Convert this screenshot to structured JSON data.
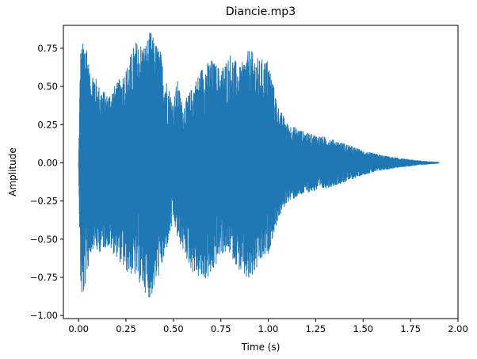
{
  "chart_data": {
    "type": "line",
    "title": "Diancie.mp3",
    "xlabel": "Time (s)",
    "ylabel": "Amplitude",
    "xlim": [
      -0.08,
      2.0
    ],
    "ylim": [
      -1.02,
      0.9
    ],
    "grid": false,
    "legend": "none",
    "x_ticks": [
      0.0,
      0.25,
      0.5,
      0.75,
      1.0,
      1.25,
      1.5,
      1.75,
      2.0
    ],
    "x_tick_labels": [
      "0.00",
      "0.25",
      "0.50",
      "0.75",
      "1.00",
      "1.25",
      "1.50",
      "1.75",
      "2.00"
    ],
    "y_ticks": [
      -1.0,
      -0.75,
      -0.5,
      -0.25,
      0.0,
      0.25,
      0.5,
      0.75
    ],
    "y_tick_labels": [
      "−1.00",
      "−0.75",
      "−0.50",
      "−0.25",
      "0.00",
      "0.25",
      "0.50",
      "0.75"
    ],
    "series_color": "#1f77b4",
    "series": [
      {
        "envelope": {
          "time": [
            0.0,
            0.01,
            0.02,
            0.04,
            0.06,
            0.08,
            0.1,
            0.15,
            0.2,
            0.25,
            0.3,
            0.35,
            0.38,
            0.4,
            0.43,
            0.45,
            0.5,
            0.52,
            0.55,
            0.6,
            0.65,
            0.7,
            0.75,
            0.8,
            0.85,
            0.9,
            0.95,
            1.0,
            1.05,
            1.1,
            1.2,
            1.3,
            1.4,
            1.5,
            1.6,
            1.7,
            1.8,
            1.9
          ],
          "upper": [
            0.0,
            0.75,
            0.78,
            0.84,
            0.58,
            0.62,
            0.52,
            0.45,
            0.52,
            0.62,
            0.8,
            0.78,
            0.87,
            0.8,
            0.75,
            0.6,
            0.4,
            0.55,
            0.38,
            0.5,
            0.63,
            0.68,
            0.62,
            0.72,
            0.63,
            0.75,
            0.68,
            0.68,
            0.38,
            0.26,
            0.2,
            0.17,
            0.13,
            0.08,
            0.05,
            0.03,
            0.015,
            0.005
          ],
          "lower": [
            0.0,
            -0.8,
            -0.93,
            -0.78,
            -0.62,
            -0.55,
            -0.6,
            -0.55,
            -0.62,
            -0.72,
            -0.75,
            -0.85,
            -0.9,
            -0.82,
            -0.72,
            -0.65,
            -0.38,
            -0.5,
            -0.58,
            -0.72,
            -0.78,
            -0.75,
            -0.6,
            -0.6,
            -0.72,
            -0.8,
            -0.68,
            -0.6,
            -0.38,
            -0.26,
            -0.2,
            -0.17,
            -0.13,
            -0.08,
            -0.05,
            -0.03,
            -0.015,
            -0.005
          ]
        }
      }
    ]
  }
}
